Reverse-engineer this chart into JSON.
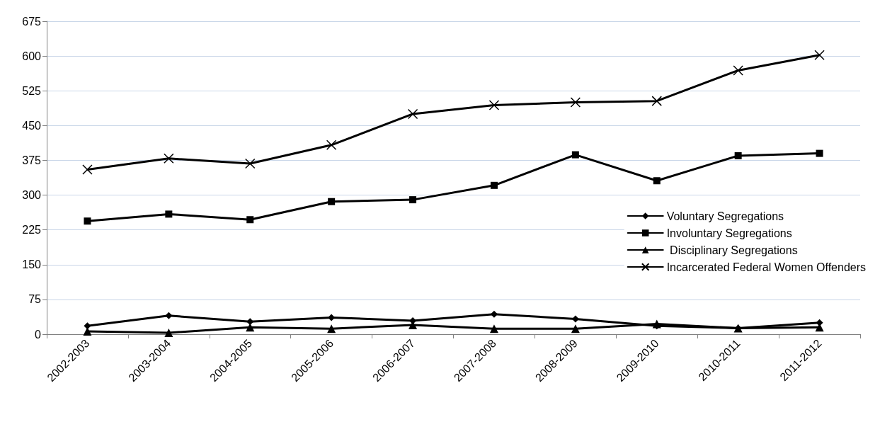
{
  "chart_data": {
    "type": "line",
    "categories": [
      "2002-2003",
      "2003-2004",
      "2004-2005",
      "2005-2006",
      "2006-2007",
      "2007-2008",
      "2008-2009",
      "2009-2010",
      "2010-2011",
      "2011-2012"
    ],
    "series": [
      {
        "name": "Voluntary Segregations",
        "color": "#000000",
        "marker": "diamond",
        "values": [
          18,
          40,
          27,
          36,
          29,
          43,
          33,
          18,
          13,
          25
        ]
      },
      {
        "name": "Involuntary Segregations",
        "color": "#000000",
        "marker": "square",
        "values": [
          244,
          259,
          247,
          286,
          290,
          321,
          387,
          331,
          385,
          390
        ]
      },
      {
        "name": " Disciplinary Segregations",
        "color": "#000000",
        "marker": "triangle",
        "values": [
          6,
          3,
          15,
          12,
          20,
          12,
          12,
          22,
          13,
          15
        ]
      },
      {
        "name": "Incarcerated Federal Women Offenders",
        "color": "#000000",
        "marker": "cross",
        "values": [
          355,
          379,
          368,
          408,
          475,
          494,
          500,
          503,
          569,
          602
        ]
      }
    ],
    "ylim": [
      0,
      675
    ],
    "yticks": [
      0,
      75,
      150,
      225,
      300,
      375,
      450,
      525,
      600,
      675
    ],
    "grid": "y",
    "legend": "right",
    "line_style": "solid"
  }
}
